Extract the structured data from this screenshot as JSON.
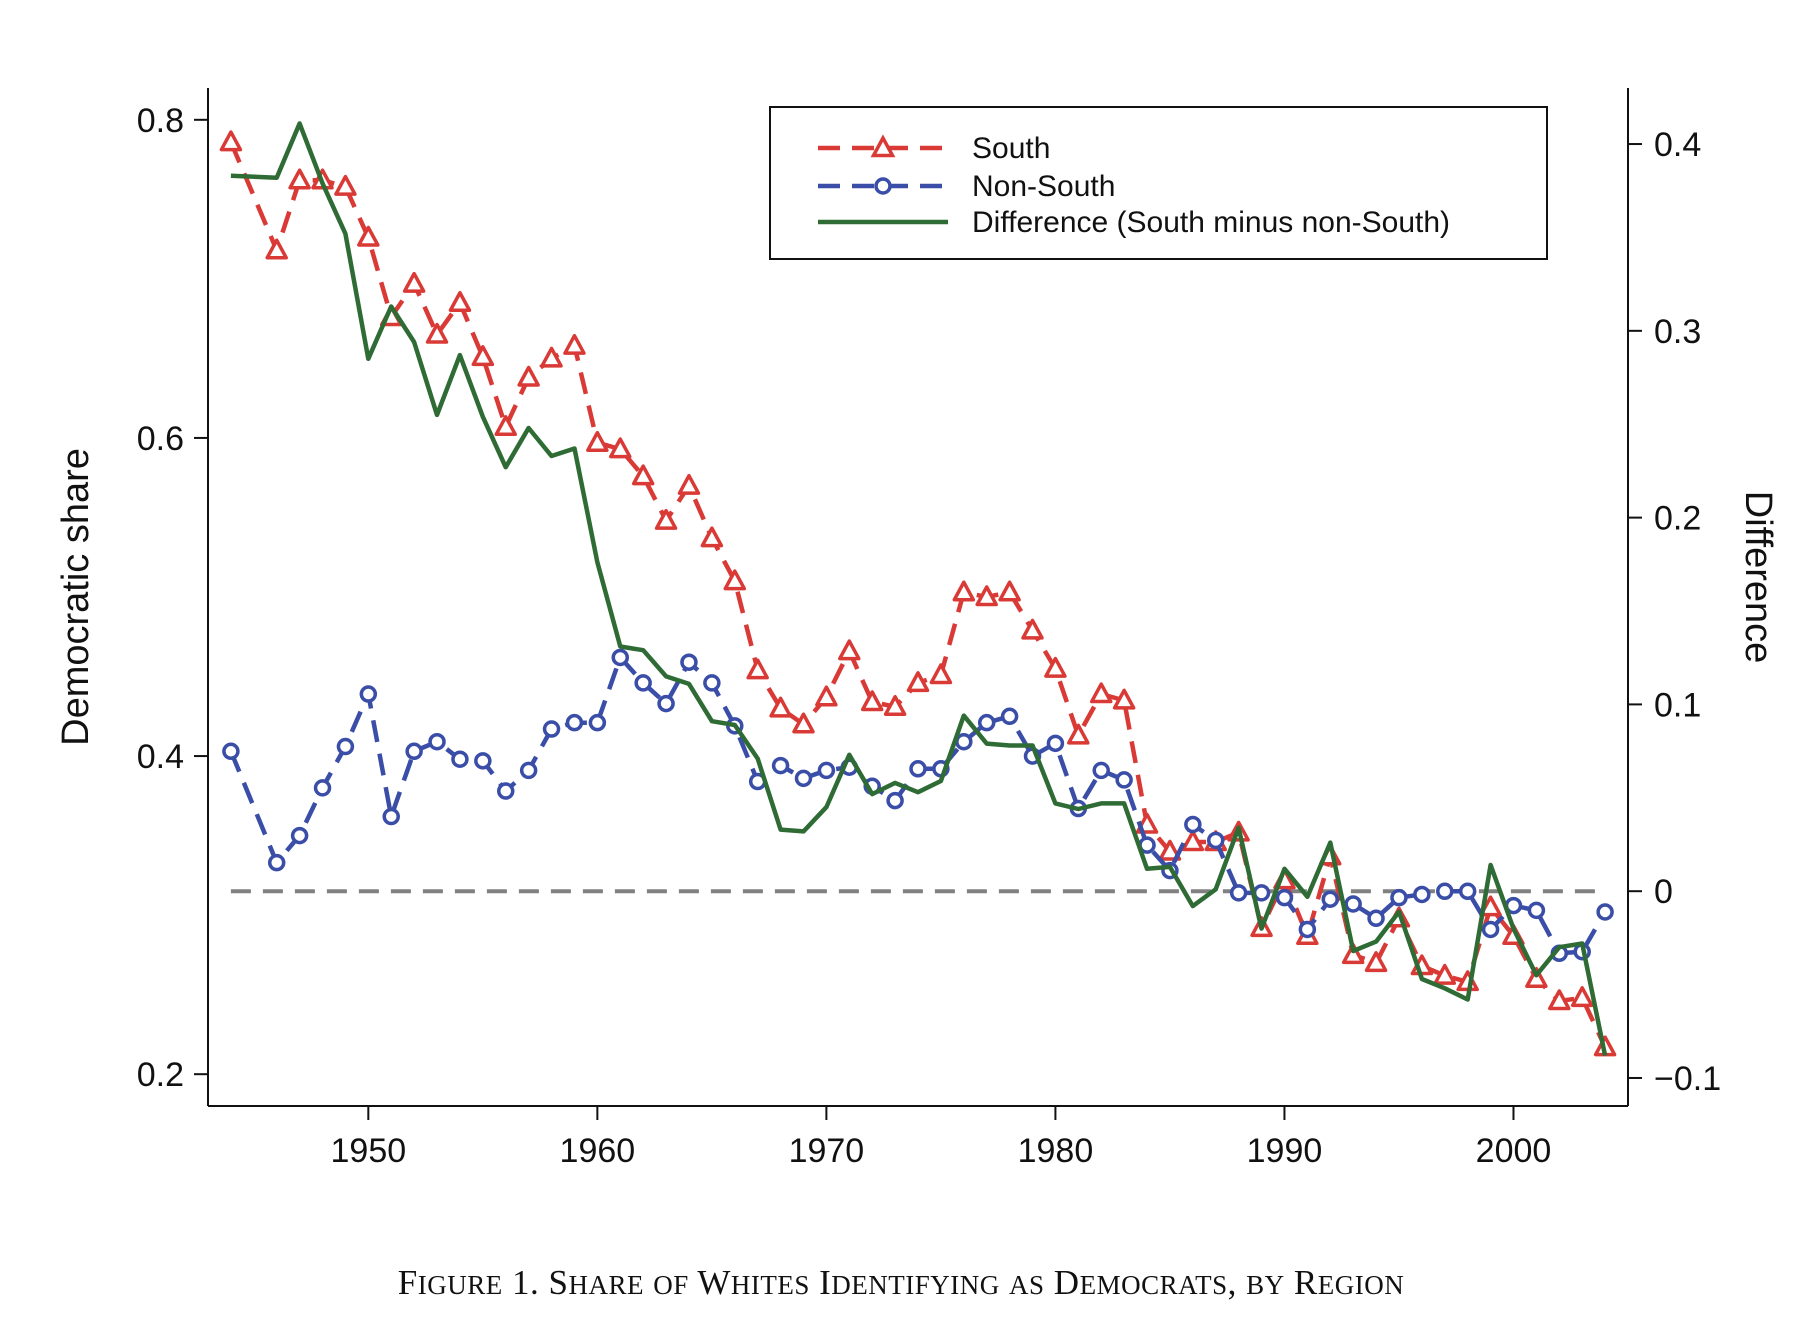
{
  "chart_data": {
    "type": "line",
    "caption": "Figure 1. Share of Whites Identifying as Democrats, by Region",
    "ylabel": "Democratic share",
    "y2label": "Difference",
    "xlim": [
      1943,
      2005
    ],
    "ylim": [
      0.18,
      0.82
    ],
    "y2lim": [
      -0.115,
      0.43
    ],
    "x_ticks": [
      1950,
      1960,
      1970,
      1980,
      1990,
      2000
    ],
    "y_ticks": [
      0.2,
      0.4,
      0.6,
      0.8
    ],
    "y_tick_labels": [
      "0.2",
      "0.4",
      "0.6",
      "0.8"
    ],
    "y2_ticks": [
      -0.1,
      0,
      0.1,
      0.2,
      0.3,
      0.4
    ],
    "y2_tick_labels": [
      "−0.1",
      "0",
      "0.1",
      "0.2",
      "0.3",
      "0.4"
    ],
    "reference_line": {
      "axis": "y2",
      "value": 0,
      "color": "#808080",
      "style": "dashed"
    },
    "legend_position": "top-right",
    "series": [
      {
        "name": "South",
        "axis": "y",
        "color": "#d93a36",
        "marker": "triangle",
        "style": "dashed",
        "x": [
          1944,
          1946,
          1947,
          1948,
          1949,
          1950,
          1951,
          1952,
          1953,
          1954,
          1955,
          1956,
          1957,
          1958,
          1959,
          1960,
          1961,
          1962,
          1963,
          1964,
          1965,
          1966,
          1967,
          1968,
          1969,
          1970,
          1971,
          1972,
          1973,
          1974,
          1975,
          1976,
          1977,
          1978,
          1979,
          1980,
          1981,
          1982,
          1983,
          1984,
          1985,
          1986,
          1987,
          1988,
          1989,
          1990,
          1991,
          1992,
          1993,
          1994,
          1995,
          1996,
          1997,
          1998,
          1999,
          2000,
          2001,
          2002,
          2003,
          2004
        ],
        "values": [
          0.786,
          0.718,
          0.762,
          0.762,
          0.758,
          0.726,
          0.676,
          0.697,
          0.665,
          0.685,
          0.651,
          0.607,
          0.638,
          0.65,
          0.658,
          0.597,
          0.593,
          0.576,
          0.548,
          0.57,
          0.537,
          0.51,
          0.454,
          0.43,
          0.42,
          0.437,
          0.466,
          0.434,
          0.431,
          0.446,
          0.451,
          0.503,
          0.5,
          0.503,
          0.479,
          0.455,
          0.413,
          0.439,
          0.435,
          0.357,
          0.34,
          0.346,
          0.346,
          0.352,
          0.292,
          0.322,
          0.287,
          0.337,
          0.275,
          0.27,
          0.298,
          0.268,
          0.262,
          0.258,
          0.305,
          0.287,
          0.26,
          0.246,
          0.248,
          0.217
        ]
      },
      {
        "name": "Non-South",
        "axis": "y",
        "color": "#3a4ea8",
        "marker": "circle",
        "style": "dashed",
        "x": [
          1944,
          1946,
          1947,
          1948,
          1949,
          1950,
          1951,
          1952,
          1953,
          1954,
          1955,
          1956,
          1957,
          1958,
          1959,
          1960,
          1961,
          1962,
          1963,
          1964,
          1965,
          1966,
          1967,
          1968,
          1969,
          1970,
          1971,
          1972,
          1973,
          1974,
          1975,
          1976,
          1977,
          1978,
          1979,
          1980,
          1981,
          1982,
          1983,
          1984,
          1985,
          1986,
          1987,
          1988,
          1989,
          1990,
          1991,
          1992,
          1993,
          1994,
          1995,
          1996,
          1997,
          1998,
          1999,
          2000,
          2001,
          2002,
          2003,
          2004
        ],
        "values": [
          0.403,
          0.333,
          0.35,
          0.38,
          0.406,
          0.439,
          0.362,
          0.403,
          0.409,
          0.398,
          0.397,
          0.378,
          0.391,
          0.417,
          0.421,
          0.421,
          0.462,
          0.446,
          0.433,
          0.459,
          0.446,
          0.419,
          0.384,
          0.394,
          0.386,
          0.391,
          0.393,
          0.381,
          0.372,
          0.392,
          0.392,
          0.409,
          0.421,
          0.425,
          0.4,
          0.408,
          0.367,
          0.391,
          0.385,
          0.344,
          0.328,
          0.357,
          0.347,
          0.314,
          0.314,
          0.311,
          0.291,
          0.31,
          0.307,
          0.298,
          0.311,
          0.313,
          0.315,
          0.315,
          0.291,
          0.306,
          0.303,
          0.276,
          0.277,
          0.302
        ]
      },
      {
        "name": "Difference (South minus non-South)",
        "axis": "y2",
        "color": "#2f6b34",
        "marker": "none",
        "style": "solid",
        "x": [
          1944,
          1946,
          1947,
          1948,
          1949,
          1950,
          1951,
          1952,
          1953,
          1954,
          1955,
          1956,
          1957,
          1958,
          1959,
          1960,
          1961,
          1962,
          1963,
          1964,
          1965,
          1966,
          1967,
          1968,
          1969,
          1970,
          1971,
          1972,
          1973,
          1974,
          1975,
          1976,
          1977,
          1978,
          1979,
          1980,
          1981,
          1982,
          1983,
          1984,
          1985,
          1986,
          1987,
          1988,
          1989,
          1990,
          1991,
          1992,
          1993,
          1994,
          1995,
          1996,
          1997,
          1998,
          1999,
          2000,
          2001,
          2002,
          2003,
          2004
        ],
        "values": [
          0.383,
          0.382,
          0.411,
          0.379,
          0.352,
          0.285,
          0.313,
          0.294,
          0.255,
          0.287,
          0.254,
          0.227,
          0.248,
          0.233,
          0.237,
          0.176,
          0.131,
          0.129,
          0.115,
          0.111,
          0.091,
          0.089,
          0.071,
          0.033,
          0.032,
          0.045,
          0.073,
          0.052,
          0.058,
          0.053,
          0.059,
          0.094,
          0.079,
          0.078,
          0.078,
          0.047,
          0.044,
          0.047,
          0.047,
          0.012,
          0.013,
          -0.008,
          0.001,
          0.034,
          -0.02,
          0.012,
          -0.003,
          0.026,
          -0.032,
          -0.027,
          -0.011,
          -0.047,
          -0.052,
          -0.058,
          0.014,
          -0.02,
          -0.045,
          -0.03,
          -0.028,
          -0.088
        ]
      }
    ]
  }
}
